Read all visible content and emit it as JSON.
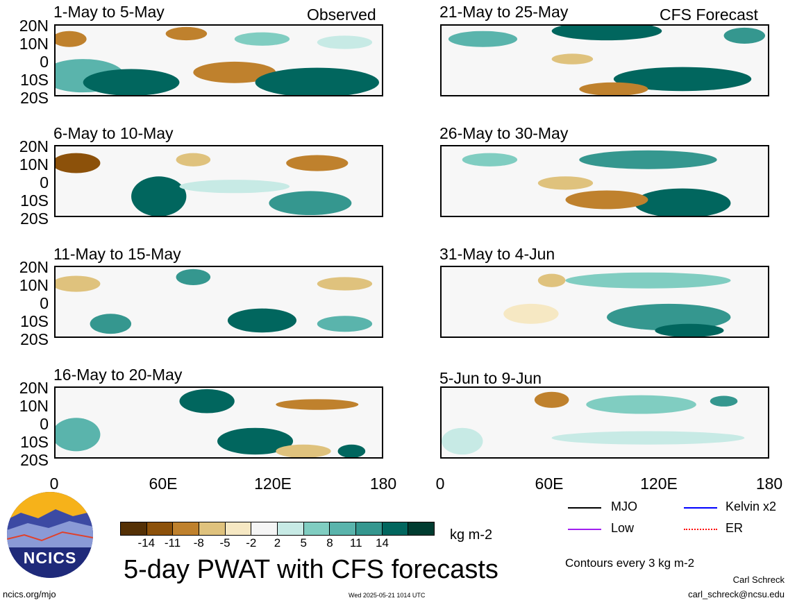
{
  "panels": {
    "left": [
      "1-May to 5-May",
      "6-May to 10-May",
      "11-May to 15-May",
      "16-May to 20-May"
    ],
    "right": [
      "21-May to 25-May",
      "26-May to 30-May",
      "31-May to 4-Jun",
      "5-Jun to 9-Jun"
    ]
  },
  "column_labels": {
    "observed": "Observed",
    "forecast": "CFS Forecast"
  },
  "y_labels": [
    "20N",
    "10N",
    "0",
    "10S",
    "20S"
  ],
  "x_labels": [
    "0",
    "60E",
    "120E",
    "180"
  ],
  "colorbar": {
    "colors": [
      "#543005",
      "#8c510a",
      "#bf812d",
      "#dfc27d",
      "#f6e8c3",
      "#f5f5f5",
      "#c7eae5",
      "#80cdc1",
      "#5ab4ac",
      "#35978f",
      "#01665e",
      "#003c30"
    ],
    "ticks": [
      "-14",
      "-11",
      "-8",
      "-5",
      "-2",
      "2",
      "5",
      "8",
      "11",
      "14"
    ],
    "units": "kg m-2"
  },
  "legend": [
    {
      "label": "MJO",
      "color": "#000000"
    },
    {
      "label": "Kelvin x2",
      "color": "#0000ff"
    },
    {
      "label": "Low",
      "color": "#a020f0"
    },
    {
      "label": "ER",
      "color": "#ff0000"
    }
  ],
  "contour_note": "Contours every 3 kg m-2",
  "main_title": "5-day PWAT with CFS forecasts",
  "logo_text": "NCICS",
  "footer": {
    "url": "ncics.org/mjo",
    "timestamp": "Wed 2025-05-21 1014 UTC",
    "author": "Carl Schreck",
    "email": "carl_schreck@ncsu.edu"
  }
}
